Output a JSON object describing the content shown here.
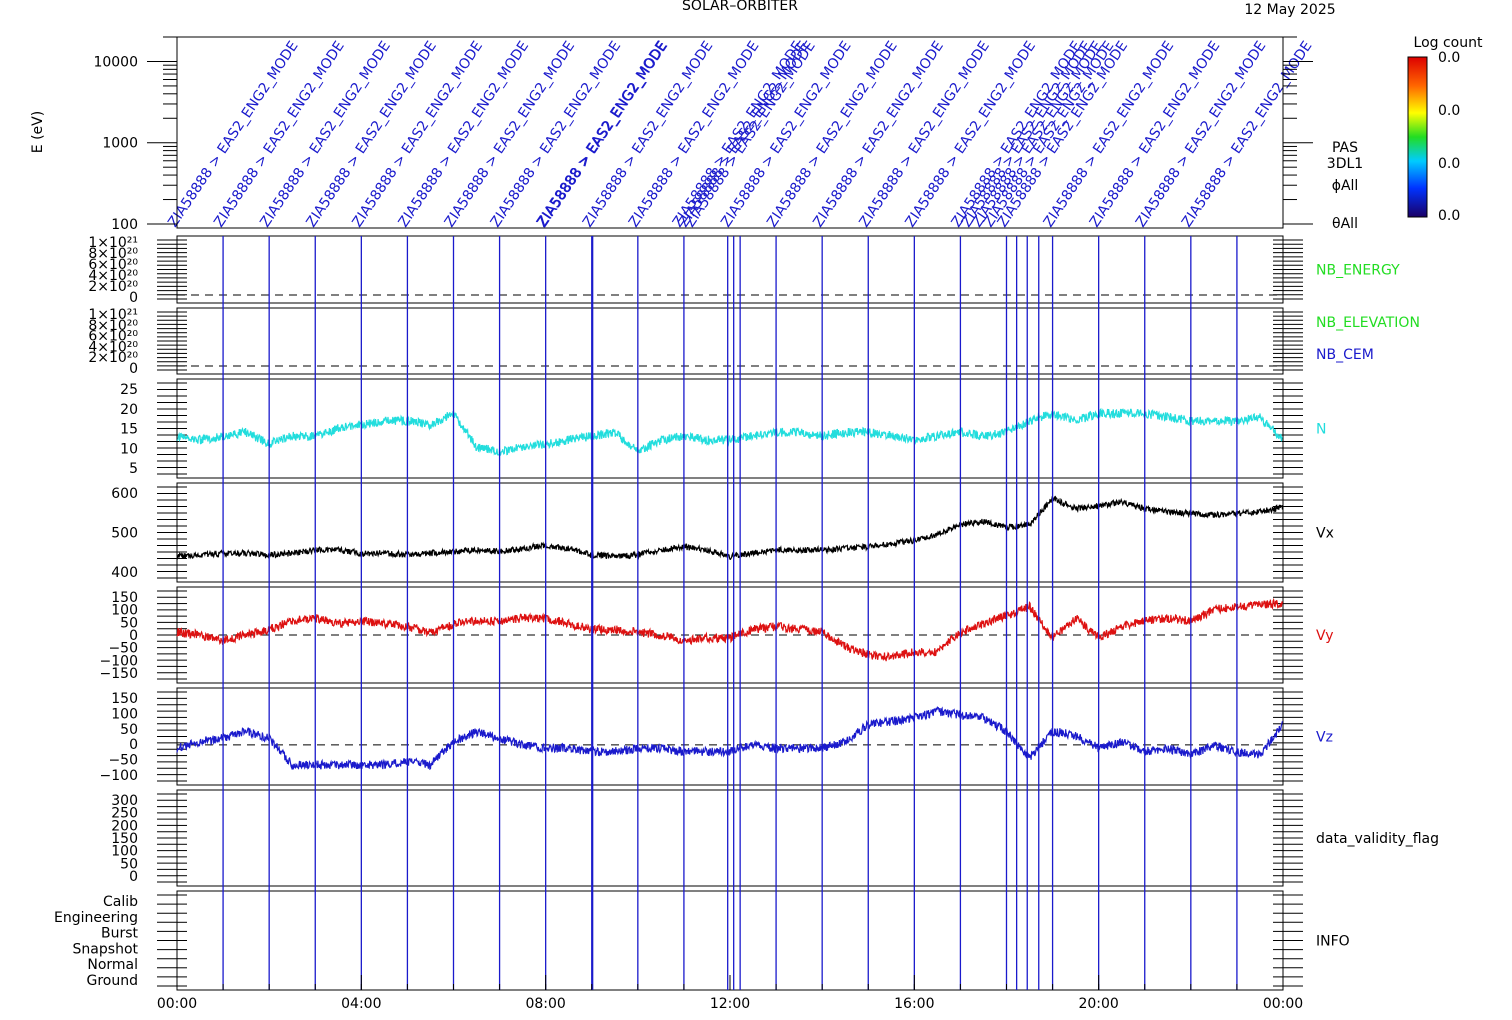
{
  "header": {
    "mission": "SOLAR–ORBITER",
    "date": "12 May 2025"
  },
  "colorbar": {
    "title": "Log count",
    "ticks": [
      "0.0",
      "0.0",
      "0.0",
      "0.0"
    ]
  },
  "spectrogram": {
    "ylabel": "E (eV)",
    "yticks": [
      "100",
      "1000",
      "10000"
    ],
    "side_labels": [
      "PAS",
      "3DL1",
      "ϕAll",
      "θAll"
    ],
    "annotation_text": "ZIA58888 > EAS2_ENG2_MODE"
  },
  "events": {
    "color": "#1a1acc",
    "hours": [
      1.0,
      2.0,
      3.0,
      4.0,
      5.0,
      6.0,
      7.0,
      8.0,
      9.0,
      9.02,
      10.0,
      11.0,
      11.95,
      12.08,
      12.22,
      13.0,
      14.0,
      15.0,
      16.0,
      17.0,
      18.0,
      18.22,
      18.45,
      18.7,
      19.0,
      20.0,
      21.0,
      22.0,
      23.0
    ]
  },
  "panels": [
    {
      "id": "nb_energy",
      "label": "NB_ENERGY",
      "label_color": "#22dd22",
      "ticks": [
        "1×10²¹",
        "8×10²⁰",
        "6×10²⁰",
        "4×10²⁰",
        "2×10²⁰",
        "0"
      ]
    },
    {
      "id": "nb_elevation",
      "label": "NB_ELEVATION",
      "label2": "NB_CEM",
      "label_color": "#22dd22",
      "label2_color": "#1a1acc",
      "ticks": [
        "1×10²¹",
        "8×10²⁰",
        "6×10²⁰",
        "4×10²⁰",
        "2×10²⁰",
        "0"
      ]
    },
    {
      "id": "n",
      "label": "N",
      "label_color": "#22dddd",
      "ticks": [
        "25",
        "20",
        "15",
        "10",
        "5"
      ]
    },
    {
      "id": "vx",
      "label": "Vx",
      "label_color": "#000000",
      "ticks": [
        "600",
        "500",
        "400"
      ]
    },
    {
      "id": "vy",
      "label": "Vy",
      "label_color": "#dd1111",
      "ticks": [
        "150",
        "100",
        "50",
        "0",
        "−50",
        "−100",
        "−150"
      ]
    },
    {
      "id": "vz",
      "label": "Vz",
      "label_color": "#1a1acc",
      "ticks": [
        "150",
        "100",
        "50",
        "0",
        "−50",
        "−100"
      ]
    },
    {
      "id": "dvf",
      "label": "data_validity_flag",
      "label_color": "#000000",
      "ticks": [
        "300",
        "250",
        "200",
        "150",
        "100",
        "50",
        "0"
      ]
    },
    {
      "id": "info",
      "label": "INFO",
      "label_color": "#000000",
      "ticks": [
        "Calib",
        "Engineering",
        "Burst",
        "Snapshot",
        "Normal",
        "Ground"
      ]
    }
  ],
  "xaxis": {
    "ticks": [
      "00:00",
      "04:00",
      "08:00",
      "12:00",
      "16:00",
      "20:00",
      "00:00"
    ]
  },
  "chart_data": {
    "type": "line",
    "x_unit": "hours of day",
    "x": [
      0,
      0.5,
      1,
      1.5,
      2,
      2.5,
      3,
      3.5,
      4,
      4.5,
      5,
      5.5,
      6,
      6.5,
      7,
      7.5,
      8,
      8.5,
      9,
      9.5,
      10,
      10.5,
      11,
      11.5,
      12,
      12.5,
      13,
      13.5,
      14,
      14.5,
      15,
      15.5,
      16,
      16.5,
      17,
      17.5,
      18,
      18.5,
      19,
      19.5,
      20,
      20.5,
      21,
      21.5,
      22,
      22.5,
      23,
      23.5,
      24
    ],
    "series": [
      {
        "name": "N",
        "color": "#22dddd",
        "ylim": [
          2,
          28
        ],
        "values": [
          13,
          12,
          13,
          14,
          11,
          13,
          13,
          15,
          16,
          17,
          17,
          16,
          19,
          10,
          9,
          10,
          11,
          12,
          13,
          14,
          9,
          12,
          13,
          12,
          12,
          13,
          14,
          14,
          13,
          14,
          14,
          13,
          12,
          13,
          14,
          13,
          14,
          17,
          19,
          17,
          19,
          19,
          19,
          18,
          17,
          17,
          17,
          18,
          12
        ]
      },
      {
        "name": "Vx",
        "color": "#000000",
        "ylim": [
          340,
          650
        ],
        "values": [
          420,
          425,
          430,
          430,
          425,
          430,
          440,
          440,
          430,
          430,
          425,
          430,
          435,
          440,
          435,
          445,
          455,
          445,
          425,
          420,
          425,
          440,
          450,
          440,
          420,
          430,
          440,
          440,
          440,
          445,
          450,
          460,
          470,
          490,
          520,
          530,
          510,
          520,
          600,
          570,
          580,
          590,
          570,
          560,
          555,
          550,
          555,
          560,
          575
        ]
      },
      {
        "name": "Vy",
        "color": "#dd1111",
        "ylim": [
          -170,
          170
        ],
        "values": [
          10,
          0,
          -20,
          0,
          20,
          50,
          60,
          40,
          50,
          40,
          30,
          10,
          40,
          50,
          50,
          60,
          60,
          40,
          20,
          20,
          10,
          0,
          -20,
          -10,
          -10,
          20,
          30,
          20,
          10,
          -40,
          -70,
          -80,
          -60,
          -60,
          10,
          40,
          70,
          100,
          -10,
          60,
          -10,
          30,
          50,
          60,
          50,
          90,
          100,
          110,
          110
        ]
      },
      {
        "name": "Vz",
        "color": "#1a1acc",
        "ylim": [
          -120,
          170
        ],
        "values": [
          -10,
          10,
          20,
          40,
          20,
          -60,
          -60,
          -60,
          -60,
          -60,
          -50,
          -60,
          10,
          40,
          20,
          0,
          -10,
          -10,
          -20,
          -20,
          -10,
          -10,
          -20,
          -20,
          -20,
          0,
          -10,
          -10,
          -10,
          10,
          60,
          70,
          80,
          100,
          90,
          80,
          40,
          -40,
          40,
          30,
          -10,
          10,
          -20,
          -10,
          -30,
          0,
          -20,
          -30,
          60
        ]
      }
    ]
  }
}
